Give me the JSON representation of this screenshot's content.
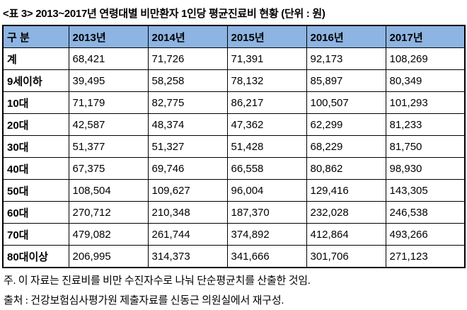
{
  "title": "<표 3> 2013~2017년 연령대별 비만환자 1인당 평균진료비 현황 (단위 : 원)",
  "table": {
    "headers": [
      "구 분",
      "2013년",
      "2014년",
      "2015년",
      "2016년",
      "2017년"
    ],
    "rows": [
      {
        "label": "계",
        "values": [
          "68,421",
          "71,726",
          "71,391",
          "92,173",
          "108,269"
        ]
      },
      {
        "label": "9세이하",
        "values": [
          "39,495",
          "58,258",
          "78,132",
          "85,897",
          "80,349"
        ]
      },
      {
        "label": "10대",
        "values": [
          "71,179",
          "82,775",
          "86,217",
          "100,507",
          "101,293"
        ]
      },
      {
        "label": "20대",
        "values": [
          "42,587",
          "48,374",
          "47,362",
          "62,299",
          "81,233"
        ]
      },
      {
        "label": "30대",
        "values": [
          "51,377",
          "51,327",
          "51,428",
          "68,229",
          "81,750"
        ]
      },
      {
        "label": "40대",
        "values": [
          "67,375",
          "69,746",
          "66,558",
          "80,862",
          "98,930"
        ]
      },
      {
        "label": "50대",
        "values": [
          "108,504",
          "109,627",
          "96,004",
          "129,416",
          "143,305"
        ]
      },
      {
        "label": "60대",
        "values": [
          "270,712",
          "210,348",
          "187,370",
          "232,028",
          "246,538"
        ]
      },
      {
        "label": "70대",
        "values": [
          "479,082",
          "261,744",
          "374,892",
          "412,864",
          "493,266"
        ]
      },
      {
        "label": "80대이상",
        "values": [
          "206,995",
          "314,373",
          "341,666",
          "301,706",
          "271,123"
        ]
      }
    ]
  },
  "notes": {
    "note1": "주. 이 자료는 진료비를 비만 수진자수로 나눠 단순평균치를 산출한 것임.",
    "note2": "출처 : 건강보험심사평가원 제출자료를 신동근 의원실에서 재구성."
  },
  "colors": {
    "header_bg": "#8DB4E2",
    "border": "#000000",
    "text": "#000000",
    "background": "#FFFFFF"
  }
}
